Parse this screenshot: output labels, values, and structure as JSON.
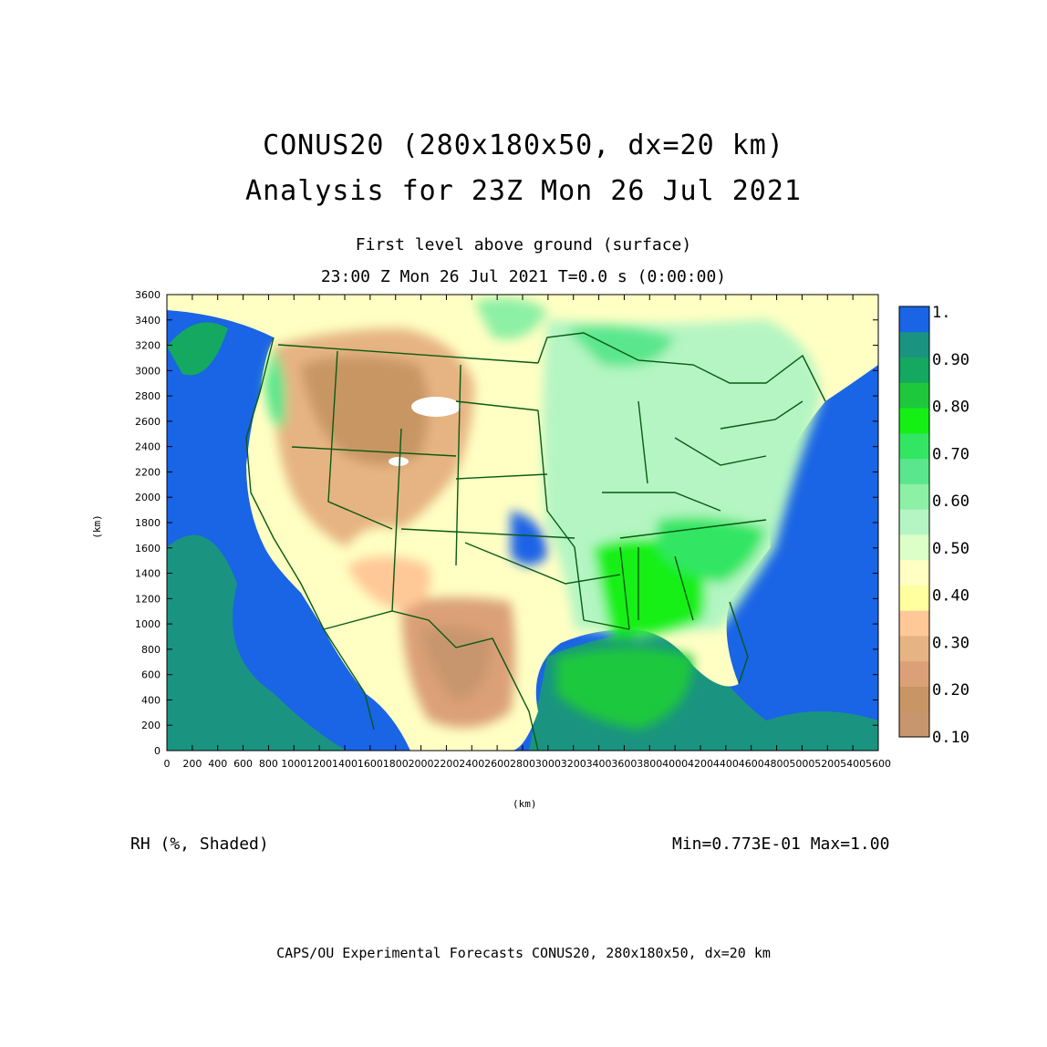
{
  "title": {
    "line1": "CONUS20 (280x180x50, dx=20 km)",
    "line2": "Analysis for 23Z Mon 26 Jul 2021"
  },
  "subtitle": {
    "line1": "First level above ground (surface)",
    "line2": "23:00 Z Mon 26 Jul 2021   T=0.0 s (0:00:00)"
  },
  "axes": {
    "x_label": "(km)",
    "y_label": "(km)",
    "x_ticks": [
      "0",
      "200",
      "400",
      "600",
      "800",
      "1000",
      "1200",
      "1400",
      "1600",
      "1800",
      "2000",
      "2200",
      "2400",
      "2600",
      "2800",
      "3000",
      "3200",
      "3400",
      "3600",
      "3800",
      "4000",
      "4200",
      "4400",
      "4600",
      "4800",
      "5000",
      "5200",
      "5400",
      "5600"
    ],
    "y_ticks": [
      "0",
      "200",
      "400",
      "600",
      "800",
      "1000",
      "1200",
      "1400",
      "1600",
      "1800",
      "2000",
      "2200",
      "2400",
      "2600",
      "2800",
      "3000",
      "3200",
      "3400",
      "3600"
    ],
    "x_range_km": [
      0,
      5600
    ],
    "y_range_km": [
      0,
      3600
    ]
  },
  "variable_label": "RH (%, Shaded)",
  "min_max": "Min=0.773E-01 Max=1.00",
  "footer": "CAPS/OU Experimental Forecasts  CONUS20, 280x180x50, dx=20 km",
  "colorbar": {
    "labels": [
      "1.",
      "0.90",
      "0.80",
      "0.70",
      "0.60",
      "0.50",
      "0.40",
      "0.30",
      "0.20",
      "0.10"
    ],
    "colors": [
      "#1a64e6",
      "#1a9480",
      "#14a860",
      "#1ec83c",
      "#14f014",
      "#32e664",
      "#5ae68c",
      "#8cf0a5",
      "#b4f5c3",
      "#dcffc8",
      "#ffffc3",
      "#ffffa0",
      "#ffc896",
      "#e6b482",
      "#dca078",
      "#c89664",
      "#c8966e"
    ]
  },
  "map_colors": {
    "ocean": "#1a64e6",
    "border": "#0a5a14",
    "blank": "#ffffff"
  }
}
